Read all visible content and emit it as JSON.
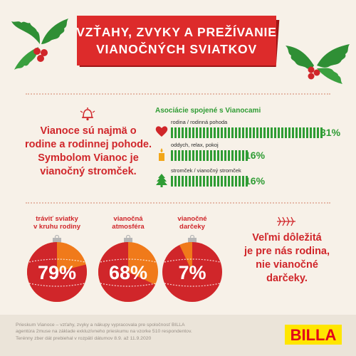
{
  "header": {
    "title_line1": "VZŤAHY, ZVYKY A PREŽÍVANIE",
    "title_line2": "VIANOČNÝCH SVIATKOV"
  },
  "intro": {
    "line1": "Vianoce sú najmä o",
    "line2": "rodine a rodinnej pohode.",
    "line3": "Symbolom Vianoc je",
    "line4": "vianočný stromček.",
    "icon": "bell-icon"
  },
  "associations": {
    "title": "Asociácie spojené s Vianocami",
    "items": [
      {
        "label": "rodina / rodinná pohoda",
        "value": "31%",
        "percent": 31,
        "icon": "heart-icon",
        "color": "#d0262a"
      },
      {
        "label": "oddych, relax, pokoj",
        "value": "16%",
        "percent": 16,
        "icon": "candle-icon",
        "color": "#f2a619"
      },
      {
        "label": "stromček / vianočný stromček",
        "value": "16%",
        "percent": 16,
        "icon": "tree-icon",
        "color": "#2f9c34"
      }
    ]
  },
  "ornaments": [
    {
      "label_line1": "tráviť sviatky",
      "label_line2": "v kruhu rodiny",
      "value": "79%",
      "percent": 79,
      "color": "#d0262a"
    },
    {
      "label_line1": "vianočná",
      "label_line2": "atmosféra",
      "value": "68%",
      "percent": 68,
      "color": "#d0262a"
    },
    {
      "label_line1": "vianočné",
      "label_line2": "darčeky",
      "value": "7%",
      "percent": 7,
      "color": "#f07a1a"
    }
  ],
  "quote": {
    "line1": "Veľmi dôležitá",
    "line2": "je pre nás rodina,",
    "line3": "nie vianočné",
    "line4": "darčeky."
  },
  "footer": {
    "line1": "Prieskum Vianoce – vzťahy, zvyky a nákupy vypracovala pre spoločnosť BILLA",
    "line2": "agentúra 2muse na základe exkluzívneho prieskumu na vzorke 510 respondentov.",
    "line3": "Terénny zber dát prebiehal v rozpätí dátumov 8.9. až 11.9.2020",
    "brand": "BILLA"
  },
  "colors": {
    "red": "#d0262a",
    "green": "#2f9c34",
    "orange": "#f07a1a",
    "yellow": "#ffe600",
    "background": "#f7f1e8"
  }
}
